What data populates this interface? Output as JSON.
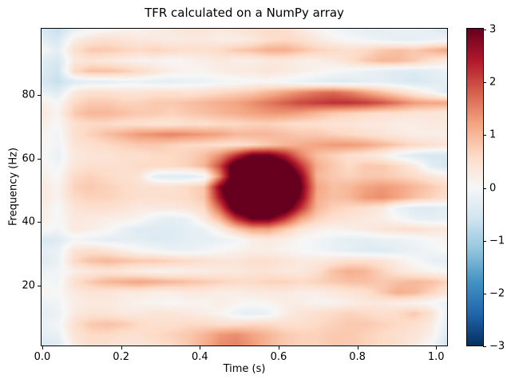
{
  "figure": {
    "background": "#ffffff"
  },
  "chart_data": {
    "type": "heatmap",
    "title": "TFR calculated on a NumPy array",
    "xlabel": "Time (s)",
    "ylabel": "Frequency (Hz)",
    "x_range": [
      0.0,
      1.03
    ],
    "y_range": [
      1.0,
      100.5
    ],
    "grid": false,
    "xticks": [
      0.0,
      0.2,
      0.4,
      0.6,
      0.8,
      1.0
    ],
    "xtick_labels": [
      "0.0",
      "0.2",
      "0.4",
      "0.6",
      "0.8",
      "1.0"
    ],
    "yticks": [
      20,
      40,
      60,
      80
    ],
    "ytick_labels": [
      "20",
      "40",
      "60",
      "80"
    ],
    "colorbar": {
      "vmin": -3,
      "vmax": 3,
      "ticks": [
        3,
        2,
        1,
        0,
        -1,
        -2,
        -3
      ],
      "tick_labels": [
        "3",
        "2",
        "1",
        "0",
        "−1",
        "−2",
        "−3"
      ],
      "colormap": "RdBu_r"
    },
    "colormap_anchors": {
      "positions": [
        0,
        0.1,
        0.2,
        0.3,
        0.4,
        0.5,
        0.6,
        0.7,
        0.8,
        0.9,
        1.0
      ],
      "colors": [
        "#053061",
        "#2166ac",
        "#4393c3",
        "#92c5de",
        "#d1e5f0",
        "#f7f7f7",
        "#fddbc7",
        "#f4a582",
        "#d6604d",
        "#b2182b",
        "#67001f"
      ]
    },
    "values_freq_order": "high-to-low (100.5 Hz top row, 1 Hz bottom row)",
    "values": [
      [
        -0.5,
        -0.7,
        -0.3,
        -0.1,
        0.0,
        0.1,
        0.1,
        0.2,
        0.3,
        0.4,
        0.4,
        0.3,
        0.4,
        0.5,
        0.6,
        0.5,
        0.3,
        0.1,
        -0.1,
        -0.2,
        -0.3,
        -0.3,
        -0.2,
        -0.2,
        -0.3,
        -0.5
      ],
      [
        -0.3,
        -0.5,
        0.2,
        0.4,
        0.5,
        0.4,
        0.3,
        0.3,
        0.2,
        0.3,
        0.3,
        0.2,
        0.2,
        0.3,
        0.5,
        0.6,
        0.5,
        0.3,
        0.1,
        0.0,
        -0.1,
        -0.2,
        -0.3,
        -0.3,
        -0.2,
        -0.1
      ],
      [
        0.0,
        -0.3,
        0.5,
        0.8,
        0.8,
        0.7,
        0.6,
        0.7,
        0.6,
        0.5,
        0.5,
        0.6,
        0.8,
        0.9,
        1.1,
        1.1,
        0.9,
        0.7,
        0.6,
        0.5,
        0.6,
        0.8,
        0.9,
        0.8,
        1.0,
        1.2
      ],
      [
        -0.3,
        -0.5,
        0.3,
        0.4,
        0.3,
        0.2,
        0.1,
        0.1,
        0.0,
        0.1,
        0.2,
        0.3,
        0.2,
        0.2,
        0.3,
        0.3,
        0.2,
        0.2,
        0.3,
        0.5,
        0.8,
        1.0,
        1.0,
        0.8,
        0.5,
        0.3
      ],
      [
        -0.4,
        -0.6,
        0.6,
        0.9,
        0.9,
        0.8,
        0.6,
        0.4,
        0.2,
        0.1,
        0.1,
        0.2,
        0.3,
        0.3,
        0.4,
        0.3,
        0.2,
        0.1,
        0.0,
        -0.1,
        -0.2,
        -0.3,
        -0.4,
        -0.4,
        -0.3,
        -0.2
      ],
      [
        -0.5,
        -0.7,
        -0.4,
        -0.3,
        -0.3,
        -0.2,
        -0.2,
        -0.3,
        -0.3,
        -0.2,
        -0.2,
        -0.1,
        -0.1,
        0.0,
        0.0,
        -0.1,
        -0.2,
        -0.3,
        -0.4,
        -0.4,
        -0.3,
        -0.3,
        -0.4,
        -0.5,
        -0.4,
        -0.3
      ],
      [
        -0.2,
        -0.4,
        0.3,
        0.5,
        0.5,
        0.4,
        0.4,
        0.5,
        0.5,
        0.4,
        0.5,
        0.6,
        0.7,
        0.8,
        1.0,
        1.2,
        1.4,
        1.6,
        1.7,
        1.5,
        1.2,
        0.9,
        0.6,
        0.3,
        0.0,
        -0.4
      ],
      [
        0.2,
        0.0,
        0.6,
        0.8,
        0.8,
        0.7,
        0.7,
        0.8,
        0.8,
        0.9,
        1.0,
        1.1,
        1.2,
        1.4,
        1.6,
        1.8,
        2.0,
        2.1,
        2.2,
        2.2,
        2.1,
        1.9,
        1.6,
        1.3,
        1.2,
        1.2
      ],
      [
        0.3,
        0.1,
        0.8,
        1.0,
        1.0,
        0.9,
        0.8,
        0.8,
        0.7,
        0.8,
        0.9,
        1.0,
        1.1,
        1.2,
        1.3,
        1.3,
        1.2,
        1.0,
        0.8,
        0.7,
        0.6,
        0.5,
        0.5,
        0.4,
        0.4,
        0.3
      ],
      [
        0.2,
        0.0,
        0.5,
        0.6,
        0.6,
        0.5,
        0.5,
        0.4,
        0.4,
        0.5,
        0.5,
        0.6,
        0.6,
        0.7,
        0.7,
        0.6,
        0.5,
        0.5,
        0.4,
        0.4,
        0.3,
        0.3,
        0.2,
        0.2,
        0.3,
        0.3
      ],
      [
        0.1,
        -0.1,
        0.5,
        0.7,
        0.9,
        1.1,
        1.3,
        1.4,
        1.5,
        1.4,
        1.3,
        1.2,
        1.0,
        1.0,
        1.0,
        0.9,
        0.8,
        0.8,
        0.7,
        0.6,
        0.5,
        0.4,
        0.3,
        0.2,
        0.2,
        0.2
      ],
      [
        0.1,
        -0.1,
        0.4,
        0.5,
        0.6,
        0.7,
        0.8,
        0.8,
        0.7,
        0.6,
        0.6,
        0.5,
        0.5,
        0.6,
        0.8,
        1.0,
        1.1,
        1.2,
        1.3,
        1.3,
        1.2,
        1.0,
        0.8,
        0.6,
        0.5,
        0.4
      ],
      [
        0.0,
        -0.2,
        0.3,
        0.4,
        0.4,
        0.5,
        0.5,
        0.6,
        0.6,
        0.7,
        0.9,
        1.4,
        2.2,
        3.0,
        3.0,
        2.4,
        1.5,
        0.9,
        0.7,
        0.5,
        0.4,
        0.2,
        -0.2,
        -0.4,
        -0.5,
        -0.5
      ],
      [
        0.1,
        -0.1,
        0.4,
        0.5,
        0.5,
        0.5,
        0.6,
        0.6,
        0.6,
        0.7,
        1.0,
        2.0,
        3.6,
        4.0,
        4.0,
        3.4,
        2.2,
        1.1,
        0.8,
        0.6,
        0.8,
        0.8,
        0.6,
        0.3,
        -0.3,
        -0.5
      ],
      [
        0.2,
        0.0,
        0.6,
        0.7,
        0.6,
        0.5,
        0.4,
        -0.3,
        -0.4,
        -0.4,
        -0.2,
        1.5,
        3.8,
        4.0,
        4.0,
        4.0,
        2.8,
        1.0,
        0.8,
        0.7,
        0.8,
        0.8,
        0.7,
        0.6,
        0.4,
        0.2
      ],
      [
        0.3,
        0.1,
        0.7,
        0.8,
        0.7,
        0.6,
        0.5,
        0.5,
        0.5,
        0.6,
        0.8,
        2.8,
        4.0,
        4.0,
        4.0,
        4.0,
        3.0,
        1.2,
        0.9,
        1.0,
        1.2,
        1.3,
        1.2,
        1.0,
        0.8,
        0.6
      ],
      [
        0.3,
        0.1,
        0.6,
        0.7,
        0.7,
        0.6,
        0.5,
        0.5,
        0.5,
        0.6,
        0.8,
        2.5,
        4.0,
        4.0,
        4.0,
        4.0,
        2.8,
        1.1,
        0.9,
        1.0,
        1.3,
        1.4,
        1.2,
        0.9,
        0.7,
        0.5
      ],
      [
        0.2,
        0.0,
        0.4,
        0.5,
        0.5,
        0.4,
        0.3,
        0.3,
        0.3,
        0.4,
        0.6,
        1.8,
        3.5,
        4.0,
        4.0,
        3.5,
        2.2,
        1.0,
        0.7,
        0.6,
        0.5,
        0.3,
        -0.2,
        -0.4,
        -0.4,
        -0.3
      ],
      [
        0.2,
        0.0,
        0.3,
        0.3,
        0.2,
        0.2,
        0.1,
        -0.2,
        -0.3,
        -0.2,
        0.3,
        1.0,
        2.2,
        3.0,
        3.0,
        2.2,
        1.2,
        0.7,
        0.5,
        0.4,
        0.3,
        0.2,
        0.0,
        -0.2,
        -0.3,
        -0.2
      ],
      [
        0.1,
        -0.1,
        0.3,
        0.2,
        0.1,
        -0.2,
        -0.4,
        -0.4,
        -0.4,
        -0.3,
        -0.2,
        0.2,
        0.8,
        1.2,
        1.2,
        0.8,
        0.4,
        0.2,
        0.1,
        0.2,
        0.3,
        0.4,
        0.5,
        0.5,
        0.4,
        0.3
      ],
      [
        -0.5,
        -0.4,
        -0.1,
        -0.2,
        -0.3,
        -0.3,
        -0.3,
        -0.4,
        -0.4,
        -0.3,
        -0.3,
        -0.2,
        -0.1,
        0.2,
        0.3,
        0.2,
        0.0,
        -0.1,
        -0.2,
        -0.3,
        -0.3,
        -0.2,
        -0.2,
        -0.1,
        0.0,
        0.1
      ],
      [
        -0.3,
        -0.2,
        0.4,
        0.5,
        0.4,
        0.2,
        0.0,
        -0.1,
        -0.2,
        -0.2,
        -0.1,
        0.0,
        0.1,
        0.2,
        0.2,
        0.1,
        0.0,
        -0.1,
        -0.2,
        -0.3,
        -0.4,
        -0.4,
        -0.3,
        -0.2,
        -0.1,
        0.0
      ],
      [
        -0.4,
        -0.2,
        0.6,
        0.9,
        1.0,
        0.9,
        0.8,
        0.8,
        0.7,
        0.6,
        0.5,
        0.4,
        0.4,
        0.5,
        0.5,
        0.4,
        0.3,
        0.3,
        0.4,
        0.5,
        0.5,
        0.4,
        0.2,
        0.0,
        -0.2,
        -0.3
      ],
      [
        -0.2,
        -0.1,
        0.2,
        0.3,
        0.4,
        0.3,
        0.2,
        0.1,
        0.1,
        0.2,
        0.2,
        0.3,
        0.3,
        0.4,
        0.4,
        0.3,
        0.3,
        0.5,
        0.9,
        1.1,
        1.0,
        0.7,
        0.4,
        0.2,
        0.1,
        0.0
      ],
      [
        0.0,
        -0.1,
        0.5,
        0.8,
        1.0,
        1.1,
        1.2,
        1.1,
        1.0,
        0.9,
        0.8,
        0.7,
        0.6,
        0.6,
        0.7,
        0.7,
        0.6,
        0.7,
        0.8,
        0.9,
        0.9,
        0.8,
        0.9,
        1.0,
        0.9,
        0.7
      ],
      [
        0.1,
        0.0,
        0.3,
        0.4,
        0.4,
        0.3,
        0.3,
        0.2,
        0.2,
        0.3,
        0.3,
        0.2,
        0.2,
        0.3,
        0.3,
        0.3,
        0.2,
        0.2,
        0.3,
        0.4,
        0.5,
        0.8,
        1.1,
        1.0,
        0.7,
        0.4
      ],
      [
        -0.2,
        -0.1,
        0.2,
        0.3,
        0.3,
        0.2,
        0.1,
        0.1,
        0.0,
        0.1,
        0.1,
        0.2,
        0.1,
        0.0,
        0.1,
        0.2,
        0.2,
        0.1,
        0.1,
        0.2,
        0.3,
        0.3,
        0.2,
        0.1,
        0.0,
        -0.2
      ],
      [
        -0.3,
        -0.2,
        0.3,
        0.4,
        0.4,
        0.3,
        0.3,
        0.4,
        0.4,
        0.3,
        0.2,
        0.1,
        -0.2,
        -0.3,
        -0.2,
        0.2,
        0.4,
        0.5,
        0.6,
        0.7,
        0.6,
        0.5,
        0.6,
        0.8,
        0.5,
        -0.2
      ],
      [
        -0.2,
        -0.1,
        0.5,
        0.8,
        0.9,
        0.8,
        0.6,
        0.5,
        0.5,
        0.6,
        0.6,
        0.5,
        0.5,
        0.6,
        0.6,
        0.5,
        0.5,
        0.6,
        0.7,
        0.8,
        0.8,
        0.7,
        0.6,
        0.5,
        0.3,
        -0.3
      ],
      [
        -0.3,
        -0.2,
        0.4,
        0.6,
        0.6,
        0.5,
        0.5,
        0.6,
        0.7,
        0.8,
        1.0,
        1.3,
        1.4,
        1.2,
        1.0,
        0.8,
        0.7,
        0.7,
        0.8,
        0.8,
        0.7,
        0.6,
        0.5,
        0.4,
        0.2,
        -0.4
      ],
      [
        -0.5,
        -0.4,
        0.3,
        0.5,
        0.5,
        0.4,
        0.4,
        0.5,
        0.6,
        0.8,
        1.1,
        1.4,
        1.5,
        1.3,
        1.0,
        0.8,
        0.7,
        0.7,
        0.8,
        0.8,
        0.7,
        0.6,
        0.5,
        0.3,
        0.0,
        -0.6
      ]
    ]
  }
}
